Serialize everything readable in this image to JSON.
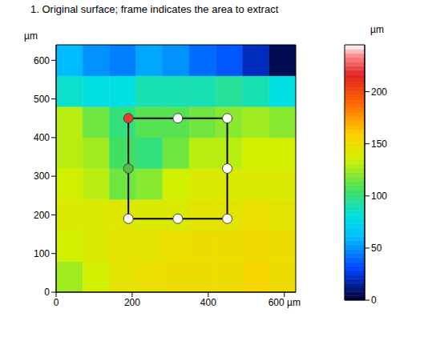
{
  "chart_data": {
    "type": "heatmap",
    "title": "1. Original surface; frame indicates the area to extract",
    "ylabel": "µm",
    "xlim": [
      0,
      630
    ],
    "ylim": [
      0,
      640
    ],
    "xticks": [
      0,
      200,
      400,
      {
        "value": 600,
        "label": "600 µm"
      }
    ],
    "yticks": [
      0,
      100,
      200,
      300,
      400,
      500,
      600
    ],
    "cells": {
      "x": [
        35,
        105,
        175,
        245,
        315,
        385,
        455,
        525,
        595
      ],
      "y": [
        40,
        120,
        200,
        280,
        360,
        440,
        520,
        600
      ],
      "z": [
        [
          125,
          135,
          145,
          148,
          150,
          150,
          150,
          155,
          150
        ],
        [
          135,
          140,
          145,
          145,
          148,
          150,
          150,
          152,
          150
        ],
        [
          140,
          140,
          142,
          140,
          140,
          145,
          145,
          148,
          145
        ],
        [
          135,
          130,
          115,
          120,
          135,
          140,
          140,
          140,
          140
        ],
        [
          130,
          125,
          105,
          100,
          115,
          130,
          130,
          135,
          135
        ],
        [
          130,
          115,
          100,
          110,
          110,
          115,
          120,
          125,
          120
        ],
        [
          85,
          80,
          80,
          90,
          90,
          90,
          95,
          90,
          80
        ],
        [
          60,
          50,
          45,
          55,
          50,
          40,
          35,
          20,
          5
        ]
      ]
    },
    "colorbar": {
      "range": [
        0,
        245
      ],
      "ticks": [
        0,
        50,
        100,
        150,
        200
      ],
      "label": "µm"
    },
    "frame": {
      "x": [
        190,
        450
      ],
      "y": [
        190,
        450
      ]
    },
    "handles": {
      "x": [
        190,
        320,
        450,
        190,
        450,
        190,
        320,
        450
      ],
      "y": [
        450,
        450,
        450,
        320,
        320,
        190,
        190,
        190
      ],
      "colors": [
        "#e04030",
        "#ffffff",
        "#ffffff",
        "#50c040",
        "#ffffff",
        "#ffffff",
        "#ffffff",
        "#ffffff"
      ]
    }
  }
}
